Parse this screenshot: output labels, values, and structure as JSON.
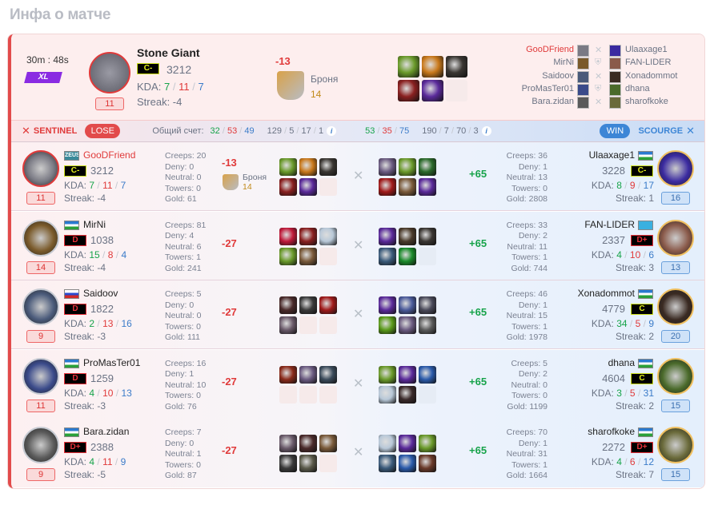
{
  "page_title": "Инфа о матче",
  "summary": {
    "duration": "30m : 48s",
    "mode": "XL",
    "hero": {
      "name": "Stone Giant",
      "level": "11",
      "rank": "C-",
      "rating": "3212",
      "kda_label": "KDA:",
      "kills": "7",
      "deaths": "11",
      "assists": "7",
      "streak": "Streak: -4",
      "delta": "-13",
      "badge_name": "Броня",
      "badge_value": "14"
    },
    "items": [
      "#6a9a2a",
      "#c9781a",
      "#3a3632",
      "#8a2020",
      "#5a2a9a",
      null
    ],
    "lineup": [
      {
        "left": "GooDFriend",
        "right": "Ulaaxage1",
        "mark": "swords"
      },
      {
        "left": "MirNi",
        "right": "FAN-LIDER",
        "mark": "shield"
      },
      {
        "left": "Saidoov",
        "right": "Xonadommot",
        "mark": "swords"
      },
      {
        "left": "ProMasTer01",
        "right": "dhana",
        "mark": "shield"
      },
      {
        "left": "Bara.zidan",
        "right": "sharofkoke",
        "mark": "swords"
      }
    ]
  },
  "teams": {
    "sentinel": {
      "name": "SENTINEL",
      "result": "LOSE",
      "score_label": "Общий счет:",
      "k": "32",
      "d": "53",
      "a": "49",
      "extra": [
        "129",
        "5",
        "17",
        "1"
      ]
    },
    "scourge": {
      "name": "SCOURGE",
      "result": "WIN",
      "k": "53",
      "d": "35",
      "a": "75",
      "extra": [
        "190",
        "7",
        "70",
        "3"
      ]
    }
  },
  "colors": {
    "lose": "#e24b4b",
    "win": "#3d86d6",
    "green": "#17a34a",
    "red": "#e03a3a",
    "blue": "#3b7cc9"
  },
  "rows": [
    {
      "left": {
        "name": "GooDFriend",
        "tag": "ZEUS",
        "flag": "tag",
        "rank": "C-",
        "rating": "3212",
        "k": "7",
        "d": "11",
        "a": "7",
        "streak": "Streak: -4",
        "level": "11",
        "creeps": "Creeps: 20",
        "deny": "Deny: 0",
        "neutral": "Neutral: 0",
        "towers": "Towers: 0",
        "gold": "Gold: 61",
        "delta": "-13",
        "badge_name": "Броня",
        "badge_value": "14",
        "avatar": "#7a7a84",
        "items": [
          "#6a9a2a",
          "#c9781a",
          "#3a3632",
          "#8a2020",
          "#5a2a9a",
          null
        ]
      },
      "right": {
        "name": "Ulaaxage1",
        "flag": "uz",
        "rank": "C-",
        "rating": "3228",
        "k": "8",
        "d": "9",
        "a": "17",
        "streak": "Streak: 1",
        "level": "16",
        "creeps": "Creeps: 36",
        "deny": "Deny: 1",
        "neutral": "Neutral: 13",
        "towers": "Towers: 0",
        "gold": "Gold: 2808",
        "delta": "+65",
        "avatar": "#3a2aa0",
        "items": [
          "#6a5a80",
          "#6a9a2a",
          "#2a6a2a",
          "#a01a1a",
          "#7a5a3a",
          "#5a2a9a"
        ]
      }
    },
    {
      "left": {
        "name": "MirNi",
        "flag": "uz",
        "rank": "D",
        "rating": "1038",
        "k": "15",
        "d": "8",
        "a": "4",
        "streak": "Streak: -4",
        "level": "14",
        "creeps": "Creeps: 81",
        "deny": "Deny: 4",
        "neutral": "Neutral: 6",
        "towers": "Towers: 1",
        "gold": "Gold: 241",
        "delta": "-27",
        "avatar": "#7a5a2a",
        "items": [
          "#c01a3a",
          "#8a2020",
          "#b8c8d8",
          "#6a9a2a",
          "#7a5a3a",
          null
        ]
      },
      "right": {
        "name": "FAN-LIDER",
        "flag": "kz",
        "rank": "D+",
        "rating": "2337",
        "k": "4",
        "d": "10",
        "a": "6",
        "streak": "Streak: 3",
        "level": "13",
        "creeps": "Creeps: 33",
        "deny": "Deny: 2",
        "neutral": "Neutral: 11",
        "towers": "Towers: 1",
        "gold": "Gold: 744",
        "delta": "+65",
        "avatar": "#8a5a4a",
        "items": [
          "#5a2a9a",
          "#4a3a2a",
          "#3a3632",
          "#3a5a7a",
          "#1a8a2a",
          null
        ]
      }
    },
    {
      "left": {
        "name": "Saidoov",
        "flag": "ru",
        "rank": "D",
        "rating": "1822",
        "k": "2",
        "d": "13",
        "a": "16",
        "streak": "Streak: -3",
        "level": "9",
        "creeps": "Creeps: 5",
        "deny": "Deny: 0",
        "neutral": "Neutral: 0",
        "towers": "Towers: 0",
        "gold": "Gold: 111",
        "delta": "-27",
        "avatar": "#4a5a7a",
        "items": [
          "#4a2a2a",
          "#3a3a3a",
          "#a01a1a",
          "#6a5a6a",
          null,
          null
        ]
      },
      "right": {
        "name": "Xonadommot",
        "flag": "uz",
        "rank": "C",
        "rating": "4779",
        "k": "34",
        "d": "5",
        "a": "9",
        "streak": "Streak: 2",
        "level": "20",
        "creeps": "Creeps: 46",
        "deny": "Deny: 1",
        "neutral": "Neutral: 15",
        "towers": "Towers: 1",
        "gold": "Gold: 1978",
        "delta": "+65",
        "avatar": "#3a2a22",
        "items": [
          "#5a2a9a",
          "#4a5a9a",
          "#4a4a5a",
          "#5a9a1a",
          "#6a5a80",
          "#5a5a5a"
        ]
      }
    },
    {
      "left": {
        "name": "ProMasTer01",
        "flag": "uz",
        "rank": "D",
        "rating": "1259",
        "k": "4",
        "d": "10",
        "a": "13",
        "streak": "Streak: -3",
        "level": "11",
        "creeps": "Creeps: 16",
        "deny": "Deny: 1",
        "neutral": "Neutral: 10",
        "towers": "Towers: 0",
        "gold": "Gold: 76",
        "delta": "-27",
        "avatar": "#3a4a8a",
        "items": [
          "#8a2a1a",
          "#6a5a80",
          "#3a4a5a",
          null,
          null,
          null
        ]
      },
      "right": {
        "name": "dhana",
        "flag": "uz",
        "rank": "C",
        "rating": "4604",
        "k": "3",
        "d": "5",
        "a": "31",
        "streak": "Streak: 2",
        "level": "15",
        "creeps": "Creeps: 5",
        "deny": "Deny: 2",
        "neutral": "Neutral: 0",
        "towers": "Towers: 0",
        "gold": "Gold: 1199",
        "delta": "+65",
        "avatar": "#4a6a2a",
        "items": [
          "#6a9a2a",
          "#5a2a9a",
          "#2a5aaa",
          "#b8c8d8",
          "#3a2a2a",
          null
        ]
      }
    },
    {
      "left": {
        "name": "Bara.zidan",
        "flag": "uz",
        "rank": "D+",
        "rating": "2388",
        "k": "4",
        "d": "11",
        "a": "9",
        "streak": "Streak: -5",
        "level": "9",
        "creeps": "Creeps: 7",
        "deny": "Deny: 0",
        "neutral": "Neutral: 1",
        "towers": "Towers: 0",
        "gold": "Gold: 87",
        "delta": "-27",
        "avatar": "#5a5a5a",
        "items": [
          "#6a5a6a",
          "#4a2a2a",
          "#7a5a3a",
          "#3a3a3a",
          "#5a5a4a",
          null
        ]
      },
      "right": {
        "name": "sharofkoke",
        "flag": "uz",
        "rank": "D+",
        "rating": "2272",
        "k": "4",
        "d": "6",
        "a": "12",
        "streak": "Streak: 7",
        "level": "15",
        "creeps": "Creeps: 70",
        "deny": "Deny: 1",
        "neutral": "Neutral: 31",
        "towers": "Towers: 1",
        "gold": "Gold: 1664",
        "delta": "+65",
        "avatar": "#6a6a3a",
        "items": [
          "#b8c8d8",
          "#5a2a9a",
          "#6a9a2a",
          "#3a5a7a",
          "#2a5aaa",
          "#6a3a2a"
        ]
      }
    }
  ]
}
